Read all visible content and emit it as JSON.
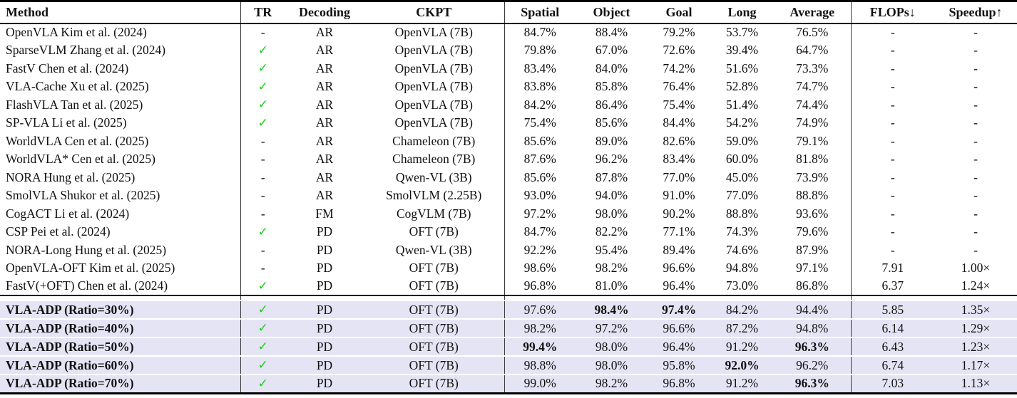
{
  "colors": {
    "highlight_row": "#E4E4F4",
    "checkmark": "#16CE16",
    "rule": "#000000",
    "divider": "#3C3C3C"
  },
  "table": {
    "header_labels": [
      "Method",
      "TR",
      "Decoding",
      "CKPT",
      "Spatial",
      "Object",
      "Goal",
      "Long",
      "Average",
      "FLOPs↓",
      "Speedup↑"
    ],
    "rows": [
      {
        "method": "OpenVLA Kim et al. (2024)",
        "tr": "-",
        "decoding": "AR",
        "ckpt": "OpenVLA (7B)",
        "spatial": "84.7%",
        "object": "88.4%",
        "goal": "79.2%",
        "long": "53.7%",
        "average": "76.5%",
        "flops": "-",
        "speedup": "-",
        "highlight": false,
        "bold": []
      },
      {
        "method": "SparseVLM Zhang et al. (2024)",
        "tr": "✓",
        "decoding": "AR",
        "ckpt": "OpenVLA (7B)",
        "spatial": "79.8%",
        "object": "67.0%",
        "goal": "72.6%",
        "long": "39.4%",
        "average": "64.7%",
        "flops": "-",
        "speedup": "-",
        "highlight": false,
        "bold": []
      },
      {
        "method": "FastV Chen et al. (2024)",
        "tr": "✓",
        "decoding": "AR",
        "ckpt": "OpenVLA (7B)",
        "spatial": "83.4%",
        "object": "84.0%",
        "goal": "74.2%",
        "long": "51.6%",
        "average": "73.3%",
        "flops": "-",
        "speedup": "-",
        "highlight": false,
        "bold": []
      },
      {
        "method": "VLA-Cache Xu et al. (2025)",
        "tr": "✓",
        "decoding": "AR",
        "ckpt": "OpenVLA (7B)",
        "spatial": "83.8%",
        "object": "85.8%",
        "goal": "76.4%",
        "long": "52.8%",
        "average": "74.7%",
        "flops": "-",
        "speedup": "-",
        "highlight": false,
        "bold": []
      },
      {
        "method": "FlashVLA Tan et al. (2025)",
        "tr": "✓",
        "decoding": "AR",
        "ckpt": "OpenVLA (7B)",
        "spatial": "84.2%",
        "object": "86.4%",
        "goal": "75.4%",
        "long": "51.4%",
        "average": "74.4%",
        "flops": "-",
        "speedup": "-",
        "highlight": false,
        "bold": []
      },
      {
        "method": "SP-VLA Li et al. (2025)",
        "tr": "✓",
        "decoding": "AR",
        "ckpt": "OpenVLA (7B)",
        "spatial": "75.4%",
        "object": "85.6%",
        "goal": "84.4%",
        "long": "54.2%",
        "average": "74.9%",
        "flops": "-",
        "speedup": "-",
        "highlight": false,
        "bold": []
      },
      {
        "method": "WorldVLA Cen et al. (2025)",
        "tr": "-",
        "decoding": "AR",
        "ckpt": "Chameleon (7B)",
        "spatial": "85.6%",
        "object": "89.0%",
        "goal": "82.6%",
        "long": "59.0%",
        "average": "79.1%",
        "flops": "-",
        "speedup": "-",
        "highlight": false,
        "bold": []
      },
      {
        "method": "WorldVLA* Cen et al. (2025)",
        "tr": "-",
        "decoding": "AR",
        "ckpt": "Chameleon (7B)",
        "spatial": "87.6%",
        "object": "96.2%",
        "goal": "83.4%",
        "long": "60.0%",
        "average": "81.8%",
        "flops": "-",
        "speedup": "-",
        "highlight": false,
        "bold": []
      },
      {
        "method": "NORA Hung et al. (2025)",
        "tr": "-",
        "decoding": "AR",
        "ckpt": "Qwen-VL (3B)",
        "spatial": "85.6%",
        "object": "87.8%",
        "goal": "77.0%",
        "long": "45.0%",
        "average": "73.9%",
        "flops": "-",
        "speedup": "-",
        "highlight": false,
        "bold": []
      },
      {
        "method": "SmolVLA Shukor et al. (2025)",
        "tr": "-",
        "decoding": "AR",
        "ckpt": "SmolVLM (2.25B)",
        "spatial": "93.0%",
        "object": "94.0%",
        "goal": "91.0%",
        "long": "77.0%",
        "average": "88.8%",
        "flops": "-",
        "speedup": "-",
        "highlight": false,
        "bold": []
      },
      {
        "method": "CogACT Li et al. (2024)",
        "tr": "-",
        "decoding": "FM",
        "ckpt": "CogVLM (7B)",
        "spatial": "97.2%",
        "object": "98.0%",
        "goal": "90.2%",
        "long": "88.8%",
        "average": "93.6%",
        "flops": "-",
        "speedup": "-",
        "highlight": false,
        "bold": []
      },
      {
        "method": "CSP Pei et al. (2024)",
        "tr": "✓",
        "decoding": "PD",
        "ckpt": "OFT (7B)",
        "spatial": "84.7%",
        "object": "82.2%",
        "goal": "77.1%",
        "long": "74.3%",
        "average": "79.6%",
        "flops": "-",
        "speedup": "-",
        "highlight": false,
        "bold": []
      },
      {
        "method": "NORA-Long Hung et al. (2025)",
        "tr": "-",
        "decoding": "PD",
        "ckpt": "Qwen-VL (3B)",
        "spatial": "92.2%",
        "object": "95.4%",
        "goal": "89.4%",
        "long": "74.6%",
        "average": "87.9%",
        "flops": "-",
        "speedup": "-",
        "highlight": false,
        "bold": []
      },
      {
        "method": "OpenVLA-OFT Kim et al. (2025)",
        "tr": "-",
        "decoding": "PD",
        "ckpt": "OFT (7B)",
        "spatial": "98.6%",
        "object": "98.2%",
        "goal": "96.6%",
        "long": "94.8%",
        "average": "97.1%",
        "flops": "7.91",
        "speedup": "1.00×",
        "highlight": false,
        "bold": []
      },
      {
        "method": "FastV(+OFT) Chen et al. (2024)",
        "tr": "✓",
        "decoding": "PD",
        "ckpt": "OFT (7B)",
        "spatial": "96.8%",
        "object": "81.0%",
        "goal": "96.4%",
        "long": "73.0%",
        "average": "86.8%",
        "flops": "6.37",
        "speedup": "1.24×",
        "highlight": false,
        "bold": []
      },
      {
        "method": "VLA-ADP (Ratio=30%)",
        "tr": "✓",
        "decoding": "PD",
        "ckpt": "OFT (7B)",
        "spatial": "97.6%",
        "object": "98.4%",
        "goal": "97.4%",
        "long": "84.2%",
        "average": "94.4%",
        "flops": "5.85",
        "speedup": "1.35×",
        "highlight": true,
        "bold": [
          "object",
          "goal"
        ]
      },
      {
        "method": "VLA-ADP (Ratio=40%)",
        "tr": "✓",
        "decoding": "PD",
        "ckpt": "OFT (7B)",
        "spatial": "98.2%",
        "object": "97.2%",
        "goal": "96.6%",
        "long": "87.2%",
        "average": "94.8%",
        "flops": "6.14",
        "speedup": "1.29×",
        "highlight": true,
        "bold": []
      },
      {
        "method": "VLA-ADP (Ratio=50%)",
        "tr": "✓",
        "decoding": "PD",
        "ckpt": "OFT (7B)",
        "spatial": "99.4%",
        "object": "98.0%",
        "goal": "96.4%",
        "long": "91.2%",
        "average": "96.3%",
        "flops": "6.43",
        "speedup": "1.23×",
        "highlight": true,
        "bold": [
          "spatial",
          "average"
        ]
      },
      {
        "method": "VLA-ADP (Ratio=60%)",
        "tr": "✓",
        "decoding": "PD",
        "ckpt": "OFT (7B)",
        "spatial": "98.8%",
        "object": "98.0%",
        "goal": "95.8%",
        "long": "92.0%",
        "average": "96.2%",
        "flops": "6.74",
        "speedup": "1.17×",
        "highlight": true,
        "bold": [
          "long"
        ]
      },
      {
        "method": "VLA-ADP (Ratio=70%)",
        "tr": "✓",
        "decoding": "PD",
        "ckpt": "OFT (7B)",
        "spatial": "99.0%",
        "object": "98.2%",
        "goal": "96.8%",
        "long": "91.2%",
        "average": "96.3%",
        "flops": "7.03",
        "speedup": "1.13×",
        "highlight": true,
        "bold": [
          "average"
        ]
      }
    ]
  }
}
